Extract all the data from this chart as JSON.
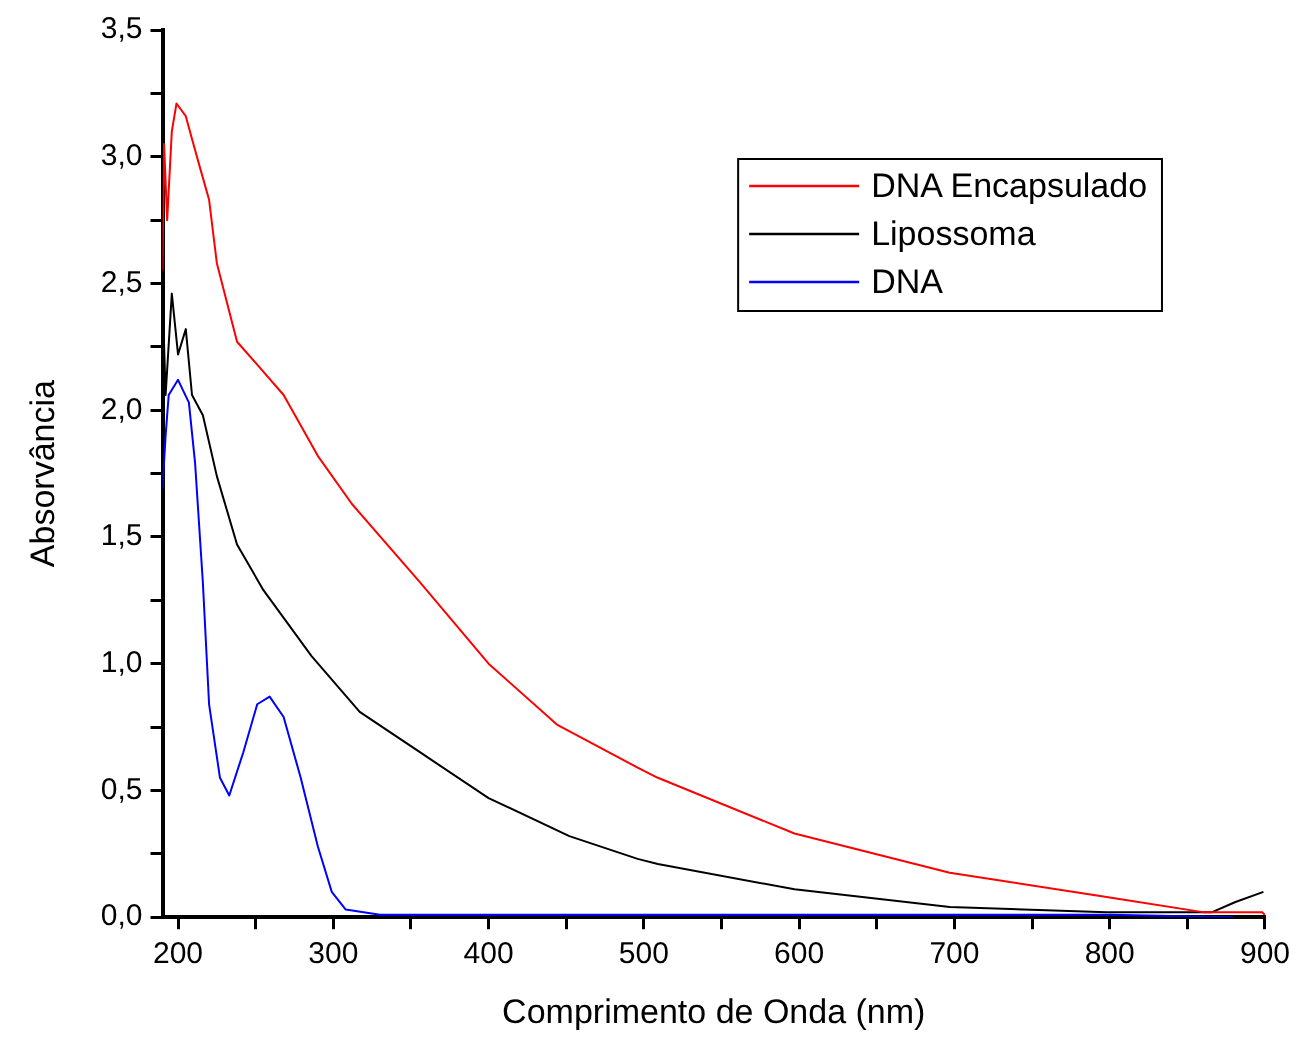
{
  "chart_data": {
    "type": "line",
    "xlabel": "Comprimento de Onda (nm)",
    "ylabel": "Absorvância",
    "xlim": [
      190,
      900
    ],
    "xticks": [
      200,
      {
        "value": 250,
        "label": null
      },
      300,
      {
        "value": 350,
        "label": null
      },
      400,
      {
        "value": 450,
        "label": null
      },
      500,
      {
        "value": 550,
        "label": null
      },
      600,
      {
        "value": 650,
        "label": null
      },
      700,
      {
        "value": 750,
        "label": null
      },
      800,
      {
        "value": 850,
        "label": null
      },
      900
    ],
    "ylim": [
      0,
      3.5
    ],
    "yticks": [
      {
        "value": 0,
        "label": "0,0"
      },
      {
        "value": 0.25,
        "label": null
      },
      {
        "value": 0.5,
        "label": "0,5"
      },
      {
        "value": 0.75,
        "label": null
      },
      {
        "value": 1,
        "label": "1,0"
      },
      {
        "value": 1.25,
        "label": null
      },
      {
        "value": 1.5,
        "label": "1,5"
      },
      {
        "value": 1.75,
        "label": null
      },
      {
        "value": 2,
        "label": "2,0"
      },
      {
        "value": 2.25,
        "label": null
      },
      {
        "value": 2.5,
        "label": "2,5"
      },
      {
        "value": 2.75,
        "label": null
      },
      {
        "value": 3,
        "label": "3,0"
      },
      {
        "value": 3.25,
        "label": null
      },
      {
        "value": 3.5,
        "label": "3,5"
      }
    ],
    "grid": false,
    "legend": "top right",
    "marker": "none",
    "line_style": "solid",
    "series": [
      {
        "name": "DNA Encapsulado",
        "color": "#ff0000",
        "x": [
          190,
          191,
          193,
          196,
          199,
          205,
          209,
          214,
          220,
          225,
          238,
          251,
          268,
          290,
          312,
          356,
          400,
          444,
          496,
          509,
          597,
          697,
          798,
          860,
          898,
          900
        ],
        "values": [
          2.55,
          3.05,
          2.75,
          3.1,
          3.21,
          3.16,
          3.07,
          2.96,
          2.83,
          2.58,
          2.27,
          2.18,
          2.06,
          1.82,
          1.63,
          1.32,
          1.0,
          0.76,
          0.59,
          0.55,
          0.33,
          0.175,
          0.08,
          0.02,
          0.02,
          0.01
        ]
      },
      {
        "name": "Lipossoma",
        "color": "#000000",
        "x": [
          190,
          192,
          196,
          200,
          205,
          209,
          216,
          225,
          238,
          255,
          286,
          317,
          356,
          400,
          452,
          496,
          509,
          597,
          697,
          798,
          866,
          881,
          899
        ],
        "values": [
          2.46,
          2.06,
          2.46,
          2.22,
          2.32,
          2.06,
          1.98,
          1.74,
          1.47,
          1.29,
          1.03,
          0.81,
          0.65,
          0.47,
          0.32,
          0.23,
          0.21,
          0.11,
          0.04,
          0.02,
          0.02,
          0.06,
          0.1
        ]
      },
      {
        "name": "DNA",
        "color": "#0000ff",
        "x": [
          190,
          192,
          194,
          200,
          207,
          211,
          216,
          220,
          227,
          233,
          242,
          251,
          259,
          268,
          279,
          290,
          299,
          308,
          330,
          500,
          800,
          880
        ],
        "values": [
          1.69,
          1.9,
          2.06,
          2.12,
          2.03,
          1.79,
          1.32,
          0.84,
          0.55,
          0.48,
          0.65,
          0.84,
          0.87,
          0.79,
          0.55,
          0.28,
          0.1,
          0.03,
          0.01,
          0.01,
          0.01,
          0.0
        ]
      }
    ]
  }
}
